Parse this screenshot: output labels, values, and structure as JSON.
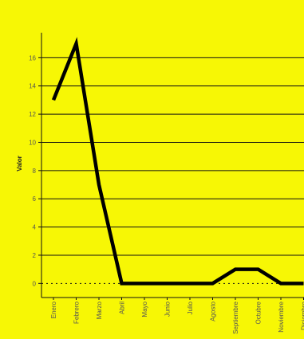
{
  "chart_data": {
    "type": "line",
    "categories": [
      "Enero",
      "Febrero",
      "Marzo",
      "Abril",
      "Mayo",
      "Junio",
      "Julio",
      "Agosto",
      "Septiembre",
      "Octubre",
      "Noviembre",
      "Diciembre"
    ],
    "series": [
      {
        "values": [
          13,
          17,
          7,
          0,
          0,
          0,
          0,
          0,
          1,
          1,
          0,
          0
        ]
      }
    ],
    "title": "",
    "xlabel": "",
    "ylabel": "Valor",
    "ylim": [
      -1,
      18
    ],
    "yticks": [
      0,
      2,
      4,
      6,
      8,
      10,
      12,
      14,
      16
    ],
    "grid": true,
    "legend": "none",
    "colors": {
      "background": "#f7f705",
      "line": "#000000",
      "grid": "#111111",
      "tick_label": "#555555",
      "axis_title": "#222222"
    }
  }
}
